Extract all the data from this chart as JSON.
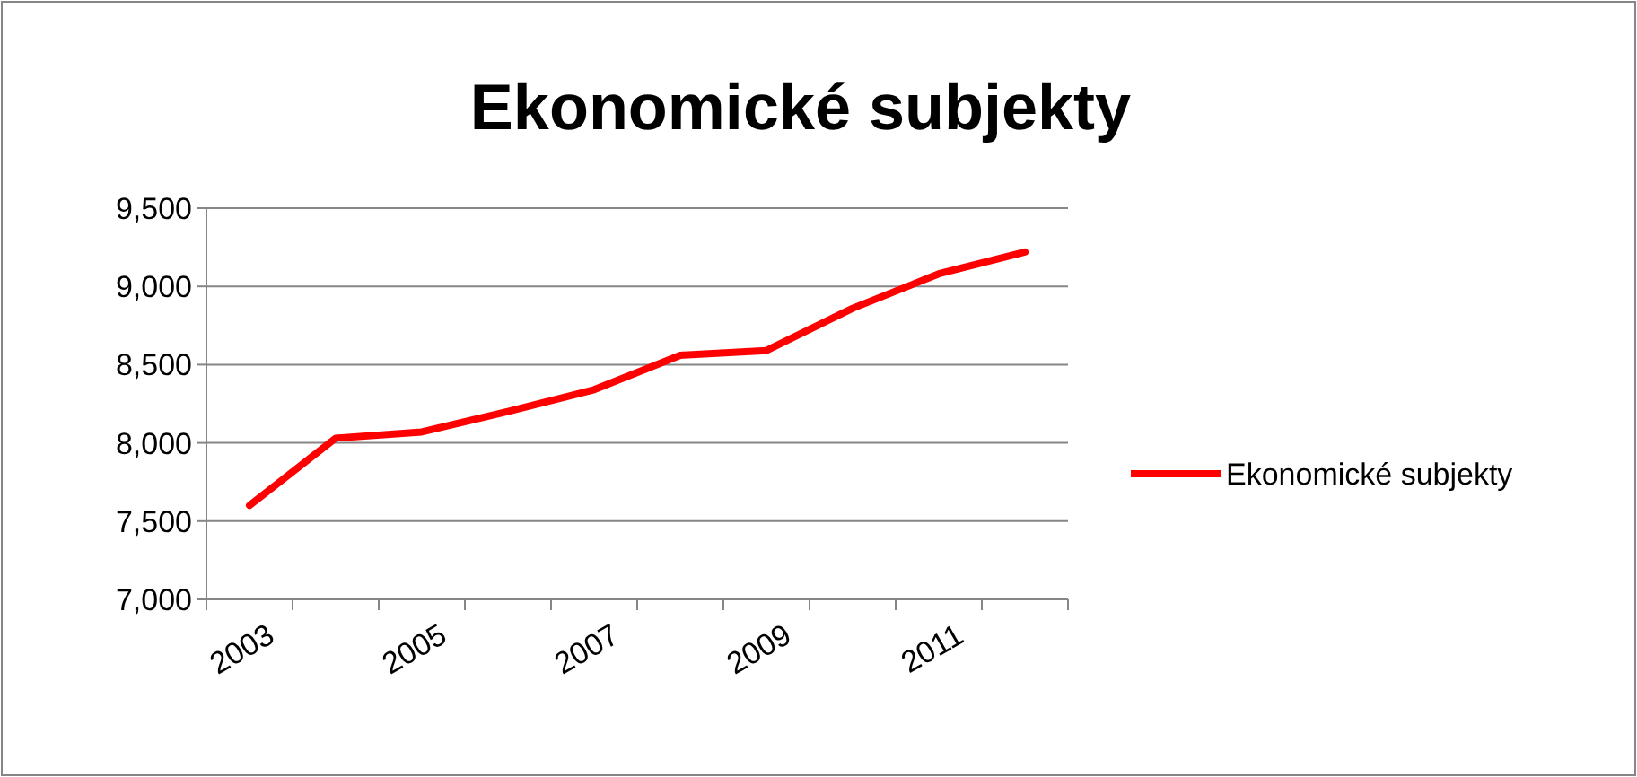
{
  "chart_data": {
    "type": "line",
    "title": "Ekonomické subjekty",
    "categories": [
      "2003",
      null,
      "2005",
      null,
      "2007",
      null,
      "2009",
      null,
      "2011",
      null
    ],
    "series": [
      {
        "name": "Ekonomické subjekty",
        "color": "#ff0000",
        "values": [
          7600,
          8030,
          8070,
          8200,
          8340,
          8560,
          8590,
          8860,
          9080,
          9220
        ]
      }
    ],
    "ylim": [
      7000,
      9500
    ],
    "yticks": [
      {
        "value": 7000,
        "label": "7,000"
      },
      {
        "value": 7500,
        "label": "7,500"
      },
      {
        "value": 8000,
        "label": "8,000"
      },
      {
        "value": 8500,
        "label": "8,500"
      },
      {
        "value": 9000,
        "label": "9,000"
      },
      {
        "value": 9500,
        "label": "9,500"
      }
    ],
    "grid": "y",
    "legend": "right",
    "marker": "none",
    "line_style": "solid"
  }
}
